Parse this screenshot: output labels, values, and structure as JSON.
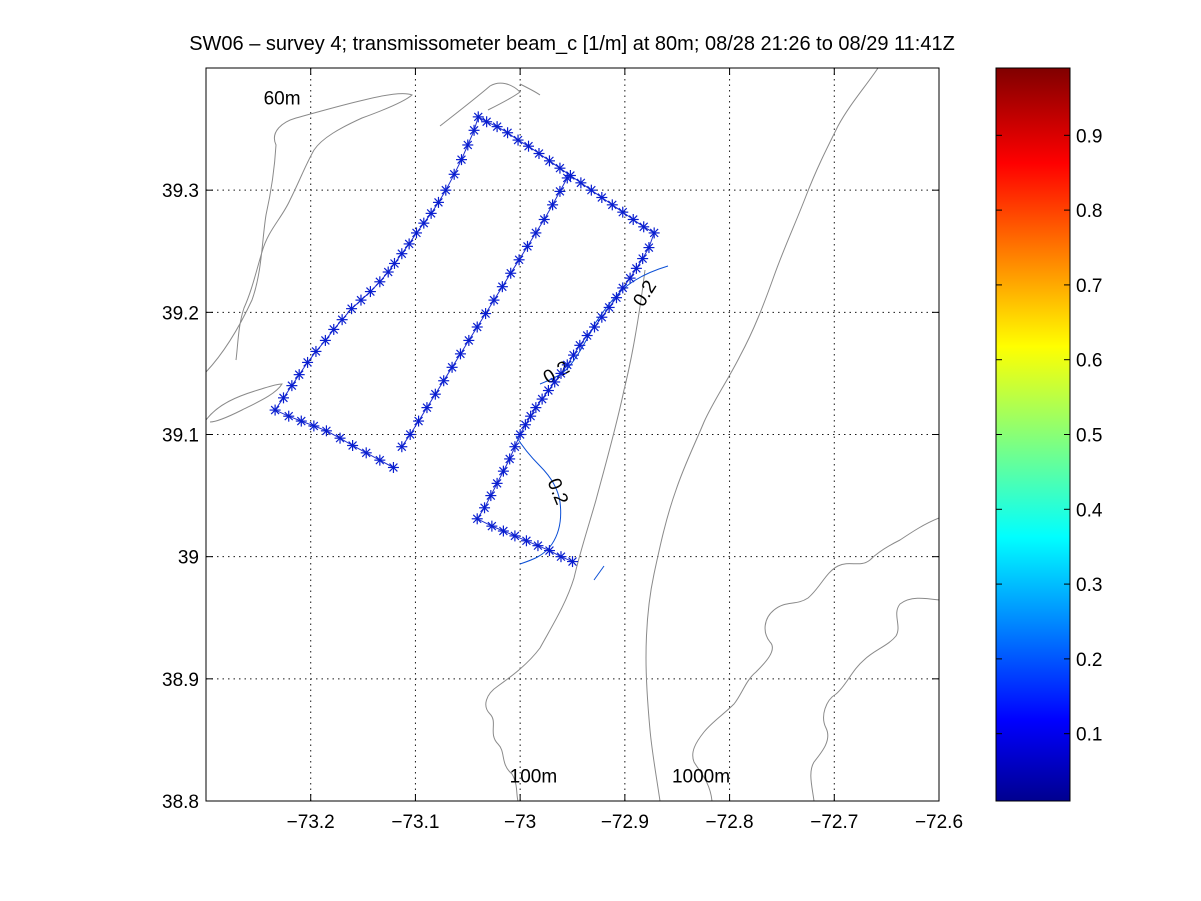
{
  "chart_data": {
    "type": "scatter",
    "title": "SW06 – survey 4; transmissometer beam_c [1/m] at 80m; 08/28 21:26 to 08/29 11:41Z",
    "xlim": [
      -73.3,
      -72.6
    ],
    "ylim": [
      38.8,
      39.4
    ],
    "x_ticks": [
      -73.2,
      -73.1,
      -73.0,
      -72.9,
      -72.8,
      -72.7,
      -72.6
    ],
    "x_tick_labels": [
      "−73.2",
      "−73.1",
      "−73",
      "−72.9",
      "−72.8",
      "−72.7",
      "−72.6"
    ],
    "y_ticks": [
      38.8,
      38.9,
      39.0,
      39.1,
      39.2,
      39.3
    ],
    "y_tick_labels": [
      "38.8",
      "38.9",
      "39",
      "39.1",
      "39.2",
      "39.3"
    ],
    "grid": true,
    "colorbar": {
      "range": [
        0.01,
        0.99
      ],
      "ticks": [
        0.1,
        0.2,
        0.3,
        0.4,
        0.5,
        0.6,
        0.7,
        0.8,
        0.9
      ],
      "tick_labels": [
        "0.1",
        "0.2",
        "0.3",
        "0.4",
        "0.5",
        "0.6",
        "0.7",
        "0.8",
        "0.9"
      ],
      "colormap": "jet"
    },
    "isobath_labels": [
      {
        "text": "60m",
        "x": -73.245,
        "y": 39.37
      },
      {
        "text": "100m",
        "x": -73.01,
        "y": 38.815
      },
      {
        "text": "1000m",
        "x": -72.855,
        "y": 38.815
      }
    ],
    "station_track": [
      [
        -73.121,
        39.073
      ],
      [
        -73.134,
        39.079
      ],
      [
        -73.147,
        39.085
      ],
      [
        -73.16,
        39.091
      ],
      [
        -73.172,
        39.097
      ],
      [
        -73.185,
        39.103
      ],
      [
        -73.197,
        39.107
      ],
      [
        -73.209,
        39.111
      ],
      [
        -73.221,
        39.115
      ],
      [
        -73.234,
        39.12
      ],
      [
        -73.226,
        39.13
      ],
      [
        -73.218,
        39.14
      ],
      [
        -73.211,
        39.149
      ],
      [
        -73.203,
        39.159
      ],
      [
        -73.195,
        39.168
      ],
      [
        -73.186,
        39.177
      ],
      [
        -73.178,
        39.186
      ],
      [
        -73.17,
        39.194
      ],
      [
        -73.161,
        39.203
      ],
      [
        -73.152,
        39.21
      ],
      [
        -73.143,
        39.217
      ],
      [
        -73.134,
        39.225
      ],
      [
        -73.126,
        39.233
      ],
      [
        -73.12,
        39.24
      ],
      [
        -73.113,
        39.248
      ],
      [
        -73.106,
        39.256
      ],
      [
        -73.099,
        39.265
      ],
      [
        -73.092,
        39.273
      ],
      [
        -73.085,
        39.281
      ],
      [
        -73.078,
        39.29
      ],
      [
        -73.071,
        39.3
      ],
      [
        -73.063,
        39.313
      ],
      [
        -73.056,
        39.325
      ],
      [
        -73.05,
        39.337
      ],
      [
        -73.044,
        39.349
      ],
      [
        -73.04,
        39.36
      ],
      [
        -73.032,
        39.356
      ],
      [
        -73.022,
        39.352
      ],
      [
        -73.012,
        39.347
      ],
      [
        -73.002,
        39.341
      ],
      [
        -72.992,
        39.336
      ],
      [
        -72.982,
        39.33
      ],
      [
        -72.972,
        39.324
      ],
      [
        -72.962,
        39.318
      ],
      [
        -72.952,
        39.312
      ],
      [
        -72.942,
        39.306
      ],
      [
        -72.932,
        39.3
      ],
      [
        -72.922,
        39.294
      ],
      [
        -72.912,
        39.288
      ],
      [
        -72.902,
        39.282
      ],
      [
        -72.892,
        39.276
      ],
      [
        -72.882,
        39.27
      ],
      [
        -72.872,
        39.265
      ],
      [
        -72.877,
        39.253
      ],
      [
        -72.883,
        39.244
      ],
      [
        -72.889,
        39.236
      ],
      [
        -72.895,
        39.228
      ],
      [
        -72.902,
        39.22
      ],
      [
        -72.908,
        39.212
      ],
      [
        -72.915,
        39.204
      ],
      [
        -72.922,
        39.196
      ],
      [
        -72.929,
        39.188
      ],
      [
        -72.936,
        39.181
      ],
      [
        -72.943,
        39.173
      ],
      [
        -72.949,
        39.165
      ],
      [
        -72.955,
        39.157
      ],
      [
        -72.961,
        39.15
      ],
      [
        -72.967,
        39.143
      ],
      [
        -72.973,
        39.136
      ],
      [
        -72.979,
        39.129
      ],
      [
        -72.985,
        39.122
      ],
      [
        -72.99,
        39.115
      ],
      [
        -72.995,
        39.108
      ],
      [
        -73.0,
        39.1
      ],
      [
        -73.005,
        39.09
      ],
      [
        -73.01,
        39.08
      ],
      [
        -73.016,
        39.07
      ],
      [
        -73.022,
        39.06
      ],
      [
        -73.028,
        39.05
      ],
      [
        -73.034,
        39.04
      ],
      [
        -73.041,
        39.031
      ],
      [
        -73.027,
        39.025
      ],
      [
        -73.016,
        39.021
      ],
      [
        -73.005,
        39.017
      ],
      [
        -72.994,
        39.013
      ],
      [
        -72.983,
        39.009
      ],
      [
        -72.972,
        39.005
      ],
      [
        -72.961,
        39.0
      ],
      [
        -72.95,
        38.996
      ]
    ],
    "interior_track": [
      [
        -73.113,
        39.09
      ],
      [
        -73.105,
        39.1
      ],
      [
        -73.097,
        39.111
      ],
      [
        -73.089,
        39.122
      ],
      [
        -73.081,
        39.133
      ],
      [
        -73.073,
        39.144
      ],
      [
        -73.065,
        39.155
      ],
      [
        -73.057,
        39.166
      ],
      [
        -73.049,
        39.177
      ],
      [
        -73.041,
        39.188
      ],
      [
        -73.033,
        39.199
      ],
      [
        -73.025,
        39.21
      ],
      [
        -73.017,
        39.221
      ],
      [
        -73.009,
        39.232
      ],
      [
        -73.001,
        39.243
      ],
      [
        -72.993,
        39.254
      ],
      [
        -72.985,
        39.265
      ],
      [
        -72.977,
        39.276
      ],
      [
        -72.969,
        39.288
      ],
      [
        -72.962,
        39.299
      ],
      [
        -72.955,
        39.31
      ]
    ],
    "contour_level_labels": [
      {
        "text": "0.2",
        "x": -72.88,
        "y": 39.215,
        "angle": -58
      },
      {
        "text": "0.2",
        "x": -72.965,
        "y": 39.15,
        "angle": -30
      },
      {
        "text": "0.2",
        "x": -72.965,
        "y": 39.053,
        "angle": 68
      }
    ]
  }
}
